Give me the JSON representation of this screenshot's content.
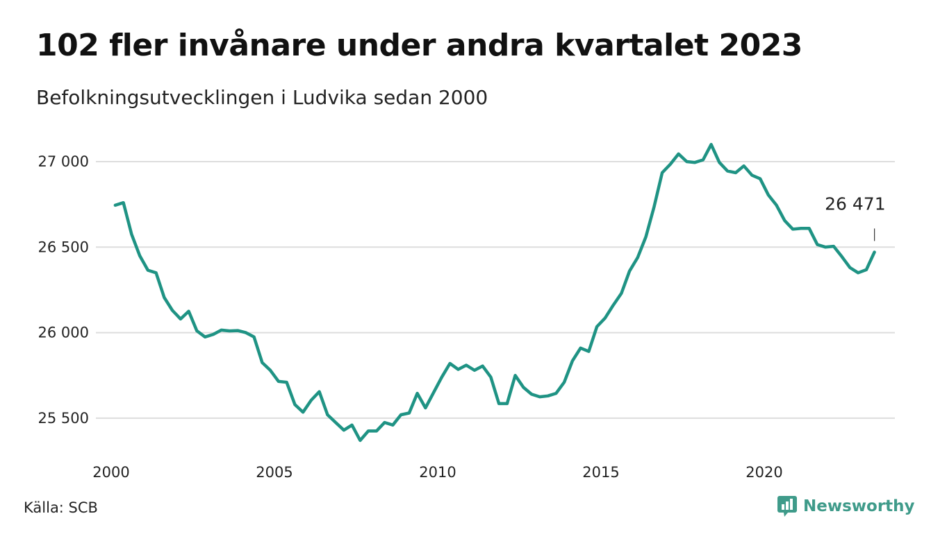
{
  "title": "102 fler invånare under andra kvartalet 2023",
  "subtitle": "Befolkningsutvecklingen i Ludvika sedan 2000",
  "source": "Källa: SCB",
  "brand": {
    "name": "Newsworthy",
    "icon": "newsworthy-logo-icon",
    "color": "#3f9b8a"
  },
  "colors": {
    "line": "#1f9384",
    "grid": "#dddddd"
  },
  "chart_data": {
    "type": "line",
    "title": "102 fler invånare under andra kvartalet 2023",
    "subtitle": "Befolkningsutvecklingen i Ludvika sedan 2000",
    "xlabel": "",
    "ylabel": "",
    "xlim": [
      2000,
      2024
    ],
    "ylim": [
      25350,
      27150
    ],
    "x_ticks": [
      2000,
      2005,
      2010,
      2015,
      2020
    ],
    "x_tick_labels": [
      "2000",
      "2005",
      "2010",
      "2015",
      "2020"
    ],
    "y_ticks": [
      25500,
      26000,
      26500,
      27000
    ],
    "y_tick_labels": [
      "25 500",
      "26 000",
      "26 500",
      "27 000"
    ],
    "grid": "horizontal",
    "legend": "none",
    "annotation": {
      "text": "26 471",
      "x": 2023.375,
      "y": 26471
    },
    "series": [
      {
        "x": [
          2000.125,
          2000.375,
          2000.625,
          2000.875,
          2001.125,
          2001.375,
          2001.625,
          2001.875,
          2002.125,
          2002.375,
          2002.625,
          2002.875,
          2003.125,
          2003.375,
          2003.625,
          2003.875,
          2004.125,
          2004.375,
          2004.625,
          2004.875,
          2005.125,
          2005.375,
          2005.625,
          2005.875,
          2006.125,
          2006.375,
          2006.625,
          2006.875,
          2007.125,
          2007.375,
          2007.625,
          2007.875,
          2008.125,
          2008.375,
          2008.625,
          2008.875,
          2009.125,
          2009.375,
          2009.625,
          2009.875,
          2010.125,
          2010.375,
          2010.625,
          2010.875,
          2011.125,
          2011.375,
          2011.625,
          2011.875,
          2012.125,
          2012.375,
          2012.625,
          2012.875,
          2013.125,
          2013.375,
          2013.625,
          2013.875,
          2014.125,
          2014.375,
          2014.625,
          2014.875,
          2015.125,
          2015.375,
          2015.625,
          2015.875,
          2016.125,
          2016.375,
          2016.625,
          2016.875,
          2017.125,
          2017.375,
          2017.625,
          2017.875,
          2018.125,
          2018.375,
          2018.625,
          2018.875,
          2019.125,
          2019.375,
          2019.625,
          2019.875,
          2020.125,
          2020.375,
          2020.625,
          2020.875,
          2021.125,
          2021.375,
          2021.625,
          2021.875,
          2022.125,
          2022.375,
          2022.625,
          2022.875,
          2023.125,
          2023.375
        ],
        "values": [
          26745,
          26760,
          26575,
          26450,
          26365,
          26350,
          26205,
          26130,
          26080,
          26125,
          26010,
          25975,
          25990,
          26015,
          26010,
          26012,
          26000,
          25975,
          25825,
          25780,
          25715,
          25710,
          25580,
          25535,
          25605,
          25655,
          25520,
          25475,
          25430,
          25460,
          25370,
          25425,
          25425,
          25475,
          25460,
          25520,
          25530,
          25645,
          25560,
          25650,
          25740,
          25820,
          25785,
          25810,
          25780,
          25805,
          25740,
          25585,
          25585,
          25750,
          25680,
          25640,
          25625,
          25630,
          25645,
          25710,
          25835,
          25910,
          25890,
          26035,
          26085,
          26160,
          26230,
          26360,
          26440,
          26560,
          26735,
          26935,
          26985,
          27045,
          27000,
          26995,
          27010,
          27100,
          26995,
          26945,
          26935,
          26975,
          26920,
          26900,
          26805,
          26745,
          26655,
          26605,
          26610,
          26610,
          26515,
          26500,
          26505,
          26445,
          26380,
          26350,
          26368,
          26471
        ]
      }
    ]
  }
}
